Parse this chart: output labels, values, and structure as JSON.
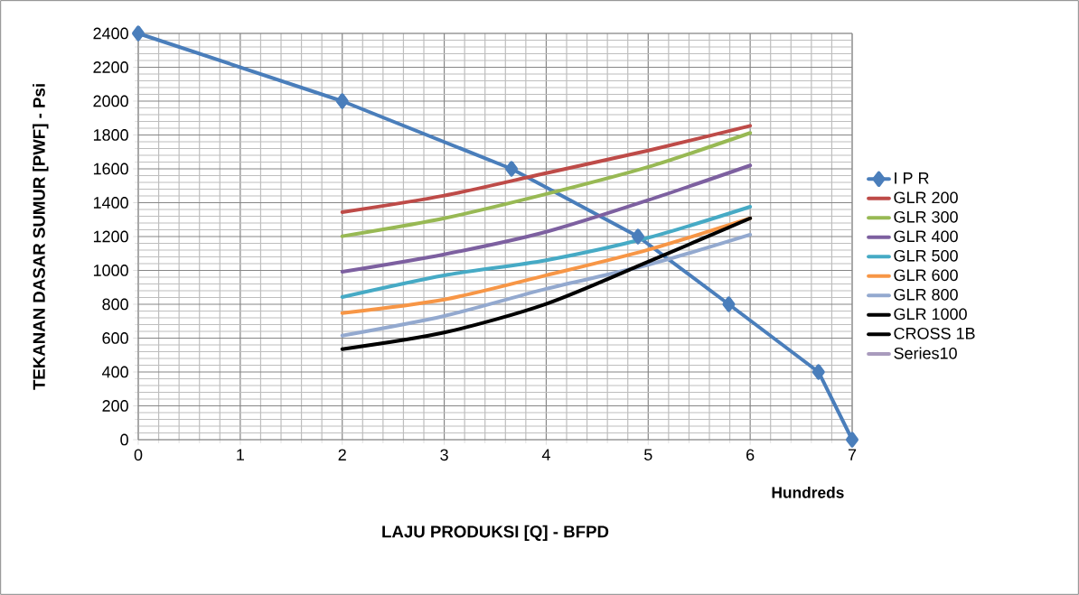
{
  "chart_data": {
    "type": "line",
    "xlabel": "LAJU PRODUKSI [Q] - BFPD",
    "ylabel": "TEKANAN DASAR SUMUR [PWF] - Psi",
    "annotations": [
      "Hundreds"
    ],
    "xlim": [
      0,
      7
    ],
    "xticks": [
      0,
      1,
      2,
      3,
      4,
      5,
      6,
      7
    ],
    "ylim": [
      0,
      2400
    ],
    "yticks": [
      0,
      200,
      400,
      600,
      800,
      1000,
      1200,
      1400,
      1600,
      1800,
      2000,
      2200,
      2400
    ],
    "grid": true,
    "legend": "right",
    "x": [
      2,
      3,
      4,
      5,
      6
    ],
    "series": [
      {
        "name": "I P R",
        "color": "#4a7ebb",
        "marker": "diamond",
        "x": [
          0,
          2,
          3.66,
          4.9,
          5.79,
          6.67,
          7
        ],
        "values": [
          2400,
          2000,
          1600,
          1200,
          800,
          400,
          0
        ]
      },
      {
        "name": "GLR 200",
        "color": "#be4b48",
        "values": [
          1344,
          1442,
          1575,
          1708,
          1854
        ]
      },
      {
        "name": "GLR 300",
        "color": "#98b954",
        "values": [
          1202,
          1308,
          1451,
          1611,
          1812
        ]
      },
      {
        "name": "GLR 400",
        "color": "#7d60a0",
        "values": [
          992,
          1095,
          1228,
          1415,
          1620
        ]
      },
      {
        "name": "GLR 500",
        "color": "#46aac5",
        "values": [
          843,
          971,
          1060,
          1193,
          1376
        ]
      },
      {
        "name": "GLR 600",
        "color": "#f79646",
        "values": [
          748,
          828,
          971,
          1122,
          1308
        ]
      },
      {
        "name": "GLR 800",
        "color": "#93a9cf",
        "values": [
          615,
          731,
          891,
          1033,
          1211
        ]
      },
      {
        "name": "GLR 1000",
        "color": "#000000",
        "values": [
          535,
          633,
          802,
          1051,
          1308
        ]
      },
      {
        "name": "CROSS 1B",
        "color": "#000000",
        "values": [
          null,
          null,
          null,
          null,
          null
        ]
      },
      {
        "name": "Series10",
        "color": "#a99bbd",
        "values": [
          null,
          null,
          null,
          null,
          null
        ]
      }
    ]
  }
}
